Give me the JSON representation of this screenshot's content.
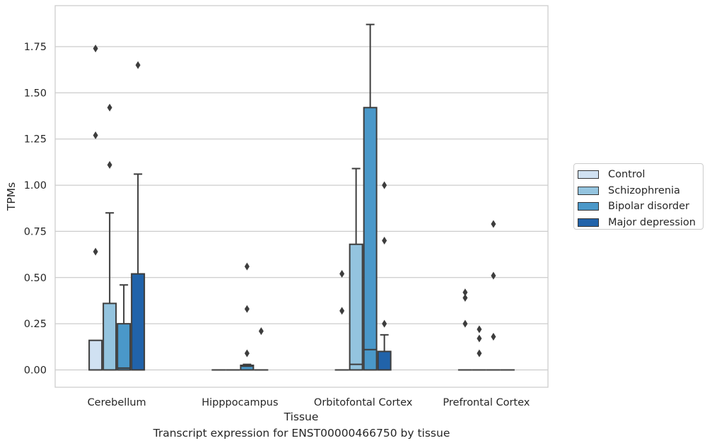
{
  "chart_data": {
    "type": "box",
    "title": "Transcript expression for ENST00000466750 by tissue",
    "xlabel": "Tissue",
    "ylabel": "TPMs",
    "ylim": [
      -0.09,
      1.97
    ],
    "yticks": [
      "0.00",
      "0.25",
      "0.50",
      "0.75",
      "1.00",
      "1.25",
      "1.50",
      "1.75"
    ],
    "categories": [
      "Cerebellum",
      "Hipppocampus",
      "Orbitofontal Cortex",
      "Prefrontal Cortex"
    ],
    "grid": "horizontal",
    "legend_position": "right",
    "series": [
      {
        "name": "Control",
        "color": "#d0e1f2",
        "boxes": [
          {
            "q1": 0.0,
            "median": 0.0,
            "q3": 0.16,
            "whisker_low": 0.0,
            "whisker_high": 0.16,
            "outliers": [
              0.64,
              1.27,
              1.74
            ]
          },
          {
            "q1": 0.0,
            "median": 0.0,
            "q3": 0.0,
            "whisker_low": 0.0,
            "whisker_high": 0.0,
            "outliers": []
          },
          {
            "q1": 0.0,
            "median": 0.0,
            "q3": 0.0,
            "whisker_low": 0.0,
            "whisker_high": 0.0,
            "outliers": [
              0.32,
              0.52
            ]
          },
          {
            "q1": 0.0,
            "median": 0.0,
            "q3": 0.0,
            "whisker_low": 0.0,
            "whisker_high": 0.0,
            "outliers": [
              0.25,
              0.39,
              0.42
            ]
          }
        ]
      },
      {
        "name": "Schizophrenia",
        "color": "#94c4df",
        "boxes": [
          {
            "q1": 0.0,
            "median": 0.0,
            "q3": 0.36,
            "whisker_low": 0.0,
            "whisker_high": 0.85,
            "outliers": [
              1.11,
              1.42
            ]
          },
          {
            "q1": 0.0,
            "median": 0.0,
            "q3": 0.0,
            "whisker_low": 0.0,
            "whisker_high": 0.0,
            "outliers": []
          },
          {
            "q1": 0.0,
            "median": 0.03,
            "q3": 0.68,
            "whisker_low": 0.0,
            "whisker_high": 1.09,
            "outliers": []
          },
          {
            "q1": 0.0,
            "median": 0.0,
            "q3": 0.0,
            "whisker_low": 0.0,
            "whisker_high": 0.0,
            "outliers": [
              0.09,
              0.17,
              0.22
            ]
          }
        ]
      },
      {
        "name": "Bipolar disorder",
        "color": "#4a98c9",
        "boxes": [
          {
            "q1": 0.0,
            "median": 0.01,
            "q3": 0.25,
            "whisker_low": 0.0,
            "whisker_high": 0.46,
            "outliers": []
          },
          {
            "q1": 0.0,
            "median": 0.02,
            "q3": 0.025,
            "whisker_low": 0.0,
            "whisker_high": 0.03,
            "outliers": [
              0.09,
              0.33,
              0.56
            ]
          },
          {
            "q1": 0.0,
            "median": 0.11,
            "q3": 1.42,
            "whisker_low": 0.0,
            "whisker_high": 1.87,
            "outliers": []
          },
          {
            "q1": 0.0,
            "median": 0.0,
            "q3": 0.0,
            "whisker_low": 0.0,
            "whisker_high": 0.0,
            "outliers": [
              0.18,
              0.51,
              0.79
            ]
          }
        ]
      },
      {
        "name": "Major depression",
        "color": "#2163aa",
        "boxes": [
          {
            "q1": 0.0,
            "median": 0.0,
            "q3": 0.52,
            "whisker_low": 0.0,
            "whisker_high": 1.06,
            "outliers": [
              1.65
            ]
          },
          {
            "q1": 0.0,
            "median": 0.0,
            "q3": 0.0,
            "whisker_low": 0.0,
            "whisker_high": 0.0,
            "outliers": [
              0.21
            ]
          },
          {
            "q1": 0.0,
            "median": 0.0,
            "q3": 0.1,
            "whisker_low": 0.0,
            "whisker_high": 0.19,
            "outliers": [
              0.25,
              0.7,
              1.0
            ]
          },
          {
            "q1": 0.0,
            "median": 0.0,
            "q3": 0.0,
            "whisker_low": 0.0,
            "whisker_high": 0.0,
            "outliers": []
          }
        ]
      }
    ]
  }
}
